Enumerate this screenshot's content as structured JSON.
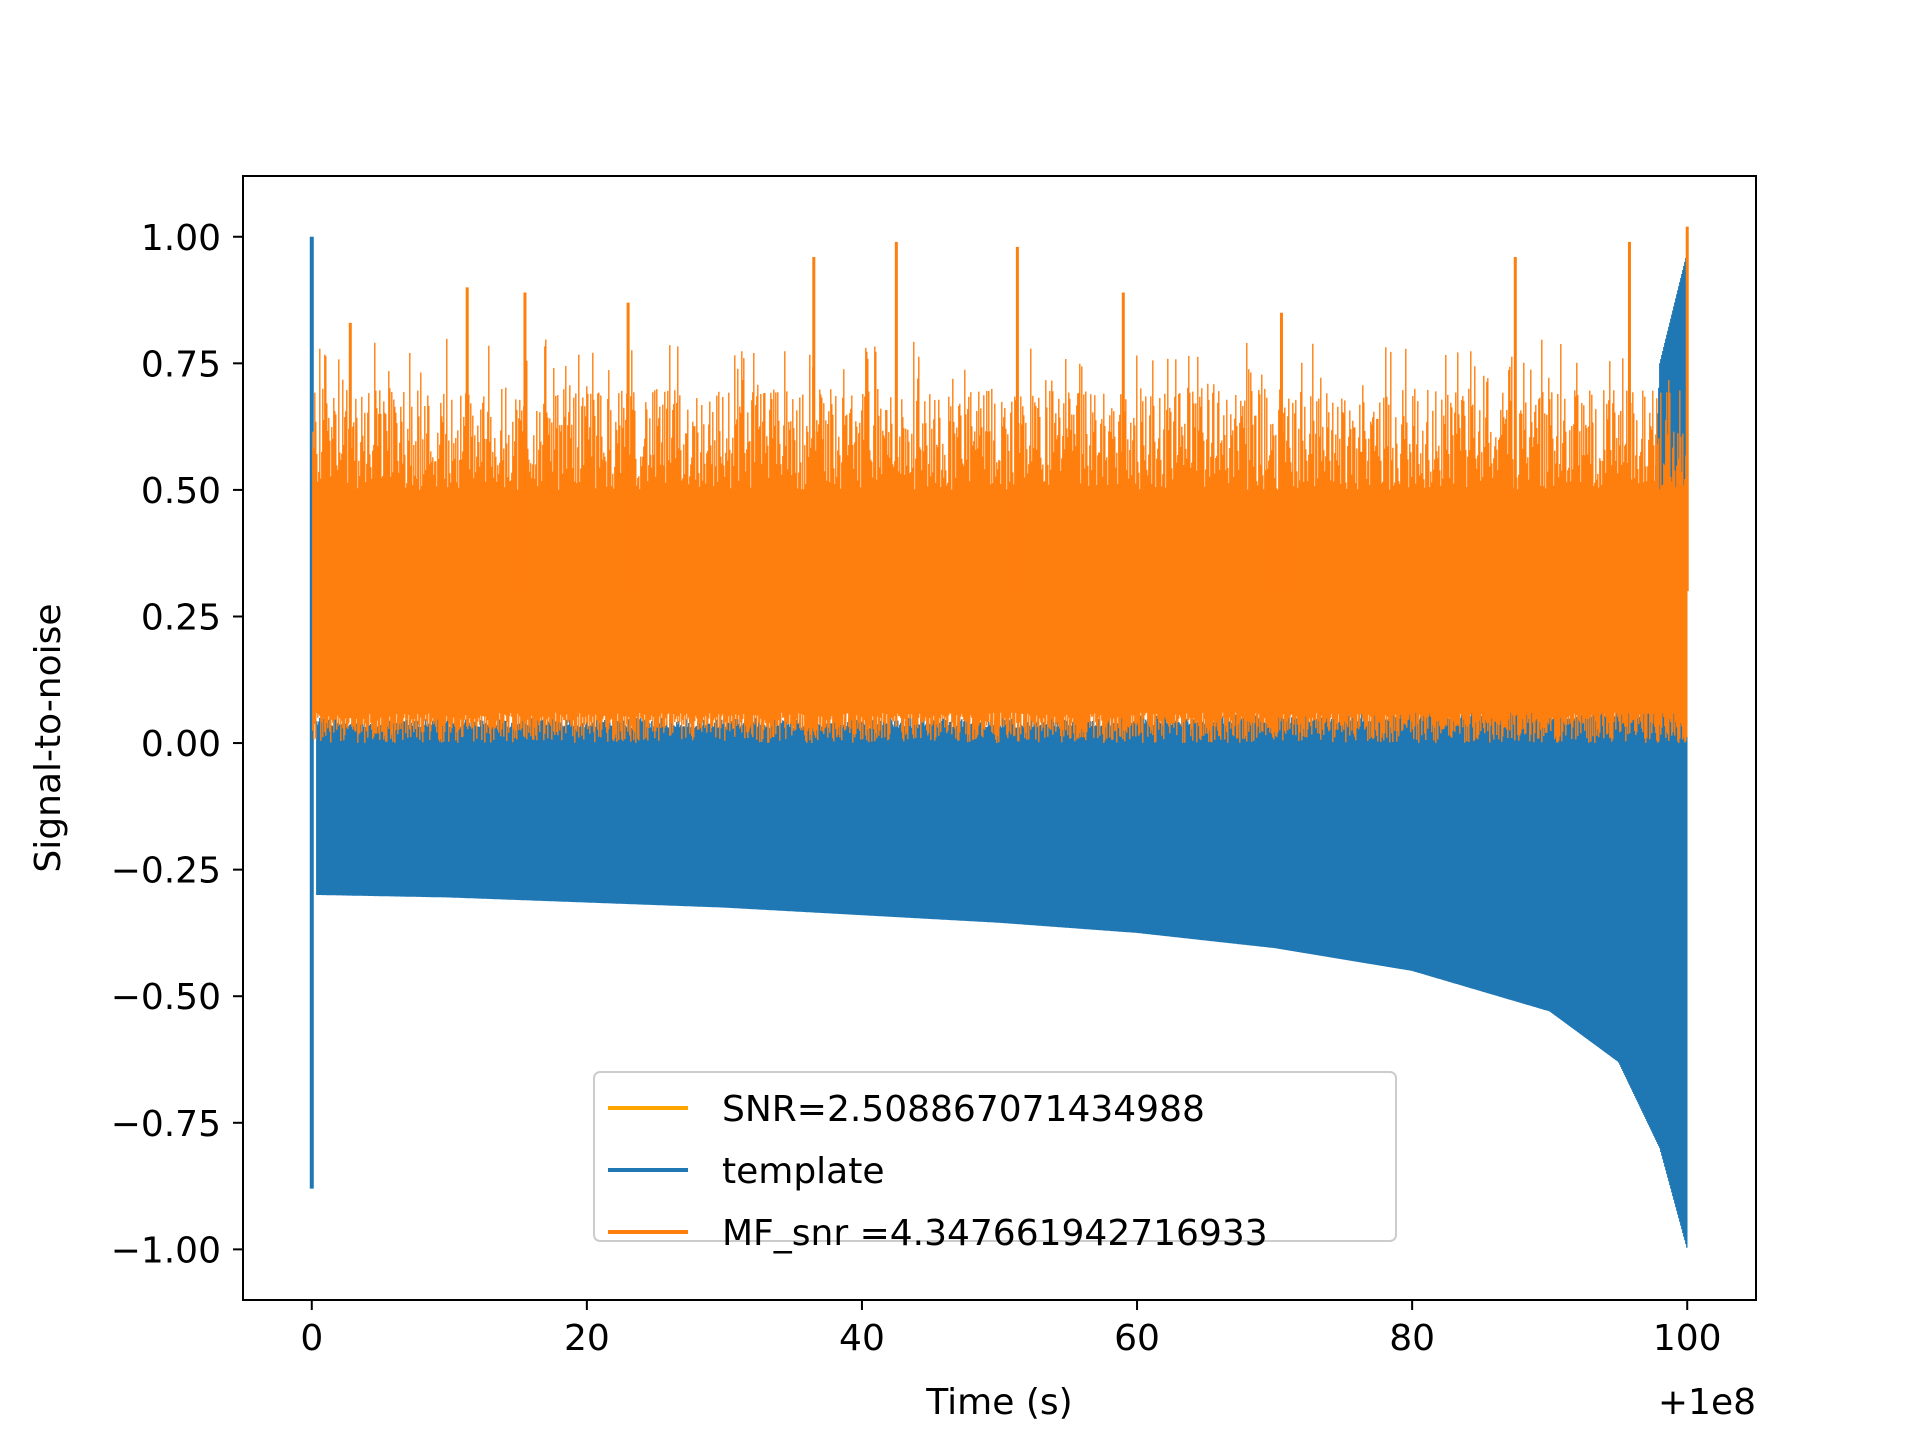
{
  "chart_data": {
    "type": "line",
    "title": "",
    "xlabel": "Time (s)",
    "ylabel": "Signal-to-noise",
    "x_offset_label": "+1e8",
    "xlim": [
      -5,
      105
    ],
    "ylim": [
      -1.1,
      1.12
    ],
    "xticks": [
      0,
      20,
      40,
      60,
      80,
      100
    ],
    "xtick_labels": [
      "0",
      "20",
      "40",
      "60",
      "80",
      "100"
    ],
    "yticks": [
      -1.0,
      -0.75,
      -0.5,
      -0.25,
      0.0,
      0.25,
      0.5,
      0.75,
      1.0
    ],
    "ytick_labels": [
      "−1.00",
      "−0.75",
      "−0.50",
      "−0.25",
      "0.00",
      "0.25",
      "0.50",
      "0.75",
      "1.00"
    ],
    "grid": false,
    "legend_position": "lower center",
    "series": [
      {
        "name": "SNR=2.508867071434988",
        "color": "#ffa500",
        "values": []
      },
      {
        "name": "template",
        "color": "#1f77b4",
        "x_range": [
          0,
          100
        ],
        "lower_envelope": [
          {
            "x": 0.3,
            "y": -0.3
          },
          {
            "x": 10,
            "y": -0.305
          },
          {
            "x": 20,
            "y": -0.315
          },
          {
            "x": 30,
            "y": -0.325
          },
          {
            "x": 40,
            "y": -0.34
          },
          {
            "x": 50,
            "y": -0.355
          },
          {
            "x": 60,
            "y": -0.375
          },
          {
            "x": 70,
            "y": -0.405
          },
          {
            "x": 80,
            "y": -0.45
          },
          {
            "x": 90,
            "y": -0.53
          },
          {
            "x": 95,
            "y": -0.63
          },
          {
            "x": 98,
            "y": -0.8
          },
          {
            "x": 100,
            "y": -1.0
          }
        ],
        "upper_envelope": [
          {
            "x": 0,
            "y": 0.03
          },
          {
            "x": 50,
            "y": 0.03
          },
          {
            "x": 97,
            "y": 0.05
          },
          {
            "x": 98,
            "y": 0.75
          },
          {
            "x": 100,
            "y": 0.97
          }
        ],
        "start_spike": {
          "x": 0,
          "min": -0.88,
          "max": 1.0
        }
      },
      {
        "name": " MF_snr =4.347661942716933",
        "color": "#ff7f0e",
        "x_range": [
          0,
          100
        ],
        "baseline_range": [
          0.0,
          0.06
        ],
        "typical_top_range": [
          0.5,
          0.7
        ],
        "peaks": [
          {
            "x": 2.8,
            "y": 0.83
          },
          {
            "x": 11.3,
            "y": 0.9
          },
          {
            "x": 15.5,
            "y": 0.89
          },
          {
            "x": 23.0,
            "y": 0.87
          },
          {
            "x": 36.5,
            "y": 0.96
          },
          {
            "x": 42.5,
            "y": 0.99
          },
          {
            "x": 51.3,
            "y": 0.98
          },
          {
            "x": 59.0,
            "y": 0.89
          },
          {
            "x": 70.5,
            "y": 0.85
          },
          {
            "x": 87.5,
            "y": 0.96
          },
          {
            "x": 95.8,
            "y": 0.99
          },
          {
            "x": 100.0,
            "y": 1.02
          }
        ]
      }
    ]
  }
}
